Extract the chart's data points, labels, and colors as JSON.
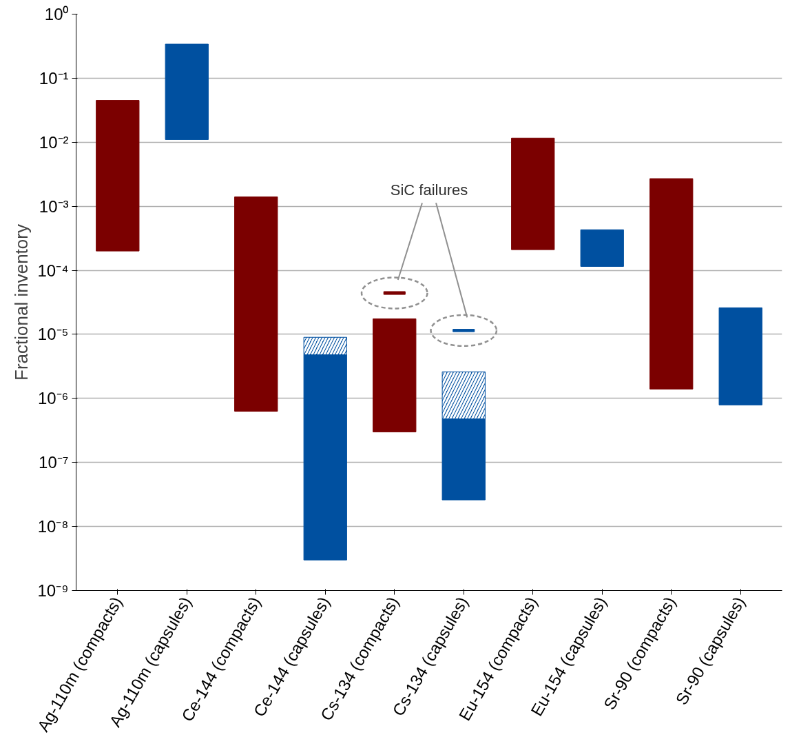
{
  "chart_data": {
    "type": "bar",
    "ylabel": "Fractional inventory",
    "categories": [
      "Ag-110m (compacts)",
      "Ag-110m (capsules)",
      "Ce-144 (compacts)",
      "Ce-144 (capsules)",
      "Cs-134 (compacts)",
      "Cs-134 (capsules)",
      "Eu-154 (compacts)",
      "Eu-154 (capsules)",
      "Sr-90 (compacts)",
      "Sr-90 (capsules)"
    ],
    "log": true,
    "ylim": [
      1e-09,
      1
    ],
    "yticks": [
      {
        "value": 1e-09,
        "label": "10⁻⁹"
      },
      {
        "value": 1e-08,
        "label": "10⁻⁸"
      },
      {
        "value": 1e-07,
        "label": "10⁻⁷"
      },
      {
        "value": 1e-06,
        "label": "10⁻⁶"
      },
      {
        "value": 1e-05,
        "label": "10⁻⁵"
      },
      {
        "value": 0.0001,
        "label": "10⁻⁴"
      },
      {
        "value": 0.001,
        "label": "10⁻³"
      },
      {
        "value": 0.01,
        "label": "10⁻²"
      },
      {
        "value": 0.1,
        "label": "10⁻¹"
      },
      {
        "value": 1,
        "label": "10⁰"
      }
    ],
    "grid": "y",
    "annotations": [
      "SiC failures"
    ],
    "series": [
      {
        "colors": [
          "#7b0000",
          "#0050a0",
          "#7b0000",
          "#0050a0",
          "#7b0000",
          "#0050a0",
          "#7b0000",
          "#0050a0",
          "#7b0000",
          "#0050a0"
        ],
        "base": [
          0.0002,
          0.011,
          6.3e-07,
          3e-09,
          3e-07,
          2.6e-08,
          0.00021,
          0.000115,
          1.4e-06,
          7.9e-07
        ],
        "values": [
          0.0448,
          0.329,
          0.0013994,
          4.797e-06,
          1.72e-05,
          4.54e-07,
          0.01139,
          0.000315,
          0.0026986,
          2.521e-05
        ]
      },
      {
        "type": "bar",
        "color": "#0050a0",
        "base": [
          null,
          null,
          null,
          4.8e-06,
          null,
          4.8e-07,
          null,
          null,
          null,
          null
        ],
        "values": [
          null,
          null,
          null,
          4.2e-06,
          null,
          2.12e-06,
          null,
          null,
          null,
          null
        ]
      },
      {
        "type": "bar",
        "colors": [
          null,
          null,
          null,
          null,
          "#7b0000",
          "#0050a0",
          null,
          null,
          null,
          null
        ],
        "base": [
          null,
          null,
          null,
          null,
          4.2e-05,
          1.1e-05,
          null,
          null,
          null,
          null
        ],
        "values": [
          null,
          null,
          null,
          null,
          4.5e-06,
          1e-06,
          null,
          null,
          null,
          null
        ]
      }
    ]
  }
}
